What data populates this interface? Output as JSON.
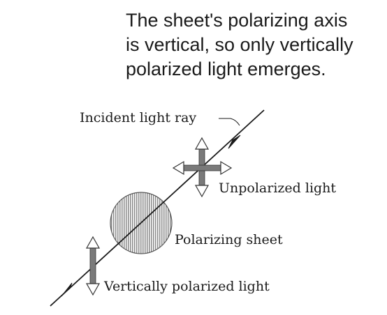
{
  "caption": {
    "lines": [
      "The sheet's polarizing axis",
      "is vertical, so only vertically",
      "polarized light emerges."
    ]
  },
  "labels": {
    "incident": "Incident light ray",
    "unpolarized": "Unpolarized light",
    "sheet": "Polarizing sheet",
    "vertical": "Vertically polarized light"
  },
  "colors": {
    "ink": "#1a1a1a",
    "sheet_fill": "#c8c8c8",
    "arrow_gray": "#7a7a7a"
  }
}
